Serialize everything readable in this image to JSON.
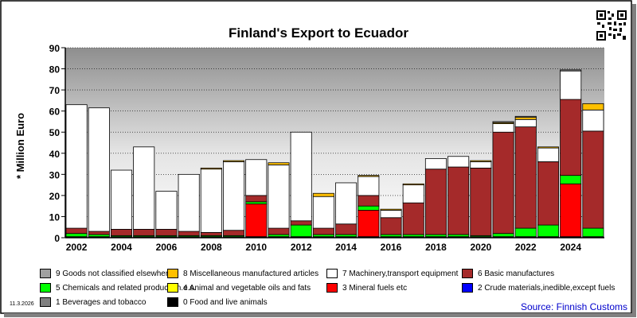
{
  "chart_data": {
    "type": "bar",
    "stacked": true,
    "title": "Finland's Export to Ecuador",
    "ylabel": "* Million Euro",
    "ylim": [
      0,
      90
    ],
    "yticks": [
      0,
      10,
      20,
      30,
      40,
      50,
      60,
      70,
      80,
      90
    ],
    "grid": true,
    "categories": [
      "2002",
      "2003",
      "2004",
      "2005",
      "2006",
      "2007",
      "2008",
      "2009",
      "2010",
      "2011",
      "2012",
      "2013",
      "2014",
      "2015",
      "2016",
      "2017",
      "2018",
      "2019",
      "2020",
      "2021",
      "2022",
      "2023",
      "2024",
      "2025"
    ],
    "x_tick_labels": [
      "2002",
      "2004",
      "2006",
      "2008",
      "2010",
      "2012",
      "2014",
      "2016",
      "2018",
      "2020",
      "2022",
      "2024"
    ],
    "series": [
      {
        "name": "0 Food and live animals",
        "color": "#000000",
        "values": [
          0.5,
          0.5,
          0.5,
          0.5,
          0.5,
          0.5,
          0.5,
          0.5,
          0.5,
          0.5,
          0.5,
          0.5,
          0.5,
          0.5,
          0.5,
          0.5,
          0.5,
          0.5,
          0.5,
          0.5,
          0.5,
          0.5,
          0.5,
          0.5
        ]
      },
      {
        "name": "1 Beverages and tobacco",
        "color": "#808080",
        "values": [
          0,
          0,
          0,
          0,
          0,
          0,
          0,
          0,
          0,
          0,
          0,
          0,
          0,
          0,
          0,
          0,
          0,
          0,
          0,
          0,
          0,
          0,
          0,
          0
        ]
      },
      {
        "name": "2 Crude materials,inedible,except fuels",
        "color": "#0000ff",
        "values": [
          0,
          0,
          0,
          0,
          0,
          0,
          0,
          0,
          0,
          0,
          0,
          0,
          0,
          0,
          0,
          0,
          0,
          0,
          0,
          0,
          0,
          0,
          0,
          0
        ]
      },
      {
        "name": "3 Mineral fuels etc",
        "color": "#ff0000",
        "values": [
          0,
          0,
          0,
          0,
          0,
          0,
          0,
          0,
          15.5,
          0,
          0,
          0,
          0,
          12.5,
          0,
          0,
          0,
          0,
          0,
          0,
          0,
          0,
          25,
          0
        ]
      },
      {
        "name": "5 Chemicals and related products,n.e.s.",
        "color": "#00ff00",
        "values": [
          1.5,
          1,
          0.5,
          0.5,
          0.5,
          0.5,
          0.5,
          0.5,
          1,
          1,
          5.5,
          1,
          1,
          2,
          1,
          1,
          1,
          1,
          0.5,
          1.5,
          4,
          5.5,
          4,
          4
        ]
      },
      {
        "name": "6 Basic manufactures",
        "color": "#a52a2a",
        "values": [
          2.5,
          1.5,
          3,
          3,
          3,
          2,
          1.5,
          2.5,
          3,
          3,
          2,
          3,
          5,
          5,
          8,
          15,
          31,
          32,
          32,
          48,
          48,
          30,
          36,
          46
        ]
      },
      {
        "name": "4 Animal and vegetable oils and fats",
        "color": "#ffff00",
        "values": [
          0,
          0,
          0,
          0,
          0,
          0,
          0,
          0,
          0,
          0,
          0,
          0,
          0,
          0,
          0,
          0,
          0,
          0,
          0,
          0,
          0,
          0,
          0,
          0
        ]
      },
      {
        "name": "7 Machinery,transport equipment",
        "color": "#ffffff",
        "values": [
          58.5,
          58.5,
          28,
          39,
          18,
          27,
          30,
          32.5,
          17,
          30,
          42,
          15,
          19.5,
          9,
          3.5,
          8.5,
          5,
          5,
          3,
          4,
          3.5,
          6.5,
          13.5,
          10
        ]
      },
      {
        "name": "8 Miscellaneous manufactured articles",
        "color": "#ffc000",
        "values": [
          0,
          0,
          0,
          0,
          0,
          0,
          0.5,
          0.5,
          0,
          1,
          0,
          1.5,
          0,
          0.5,
          0.5,
          0.5,
          0,
          0,
          0.5,
          0.5,
          1,
          0.5,
          0,
          3
        ]
      },
      {
        "name": "9 Goods not classified elsewhere",
        "color": "#a0a0a0",
        "values": [
          0,
          0,
          0,
          0,
          0,
          0,
          0,
          0,
          0,
          0,
          0,
          0,
          0,
          0,
          0,
          0,
          0,
          0,
          0,
          0.5,
          0.5,
          0,
          0.5,
          0
        ]
      }
    ],
    "legend_placement": "bottom"
  },
  "legend": [
    {
      "label": "9 Goods not classified elsewhere",
      "color": "#a0a0a0"
    },
    {
      "label": "8 Miscellaneous manufactured articles",
      "color": "#ffc000"
    },
    {
      "label": "7 Machinery,transport equipment",
      "color": "#ffffff"
    },
    {
      "label": "6 Basic manufactures",
      "color": "#a52a2a"
    },
    {
      "label": "5 Chemicals and related products,n.e.s.",
      "color": "#00ff00"
    },
    {
      "label": "4 Animal and vegetable oils and fats",
      "color": "#ffff00"
    },
    {
      "label": "3 Mineral fuels etc",
      "color": "#ff0000"
    },
    {
      "label": "2 Crude materials,inedible,except fuels",
      "color": "#0000ff"
    },
    {
      "label": "1 Beverages and tobacco",
      "color": "#808080"
    },
    {
      "label": "0 Food and live animals",
      "color": "#000000"
    }
  ],
  "footer": {
    "date": "11.3.2026",
    "source": "Source: Finnish Customs"
  },
  "colors": {
    "plot_gradient_top": "#9a9a9a",
    "plot_gradient_bottom": "#ffffff",
    "source_text": "#0000cc"
  }
}
